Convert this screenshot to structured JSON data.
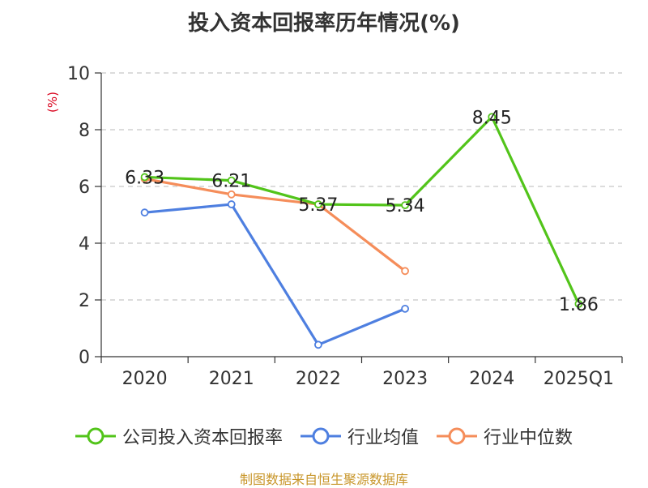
{
  "title": "投入资本回报率历年情况(%)",
  "source_note": "制图数据来自恒生聚源数据库",
  "legend": [
    {
      "label": "公司投入资本回报率",
      "color": "#52c41a"
    },
    {
      "label": "行业均值",
      "color": "#4e7fe0"
    },
    {
      "label": "行业中位数",
      "color": "#f58d5a"
    }
  ],
  "chart_data": {
    "type": "line",
    "title": "投入资本回报率历年情况(%)",
    "ylabel": "(%)",
    "xlabel": "",
    "ylim": [
      0,
      10
    ],
    "yticks": [
      0,
      2,
      4,
      6,
      8,
      10
    ],
    "grid": true,
    "legend_position": "bottom",
    "categories": [
      "2020",
      "2021",
      "2022",
      "2023",
      "2024",
      "2025Q1"
    ],
    "series": [
      {
        "name": "公司投入资本回报率",
        "color": "#52c41a",
        "values": [
          6.33,
          6.21,
          5.37,
          5.34,
          8.45,
          1.86
        ],
        "labels": [
          "6.33",
          "6.21",
          "5.37",
          "5.34",
          "8.45",
          "1.86"
        ],
        "show_labels": true
      },
      {
        "name": "行业均值",
        "color": "#4e7fe0",
        "values": [
          5.08,
          5.37,
          0.42,
          1.69,
          null,
          null
        ],
        "show_labels": false
      },
      {
        "name": "行业中位数",
        "color": "#f58d5a",
        "values": [
          6.27,
          5.72,
          5.37,
          3.02,
          null,
          null
        ],
        "show_labels": false
      }
    ]
  }
}
